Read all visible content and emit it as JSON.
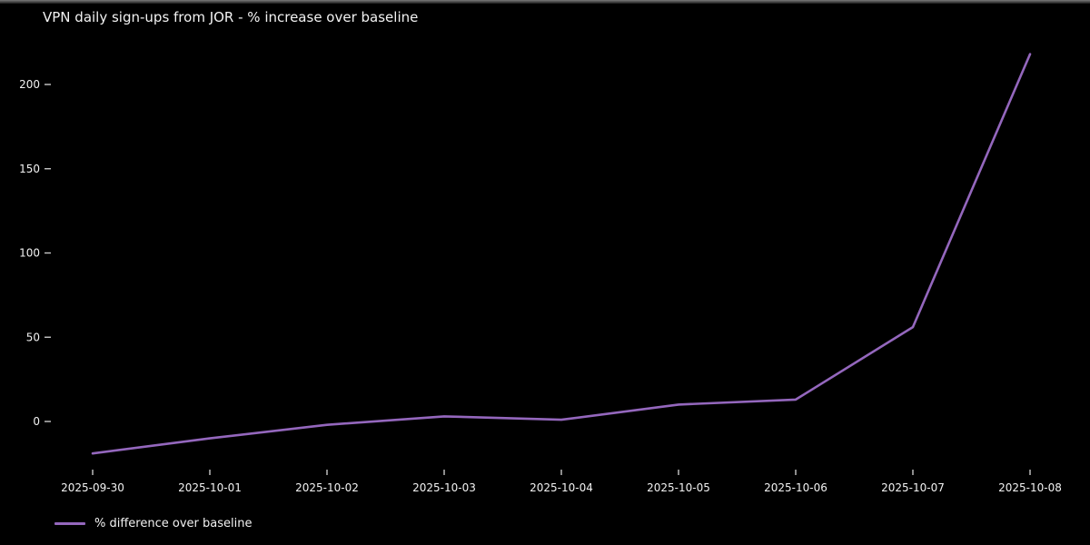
{
  "chart_data": {
    "type": "line",
    "title": "VPN daily sign-ups from JOR - % increase over baseline",
    "x": [
      "2025-09-30",
      "2025-10-01",
      "2025-10-02",
      "2025-10-03",
      "2025-10-04",
      "2025-10-05",
      "2025-10-06",
      "2025-10-07",
      "2025-10-08"
    ],
    "series": [
      {
        "name": "% difference over baseline",
        "values": [
          -19,
          -10,
          -2,
          3,
          1,
          10,
          13,
          56,
          218
        ],
        "color": "#9467bd"
      }
    ],
    "xlabel": "",
    "ylabel": "",
    "yticks": [
      0,
      50,
      100,
      150,
      200
    ],
    "ylim": [
      -30,
      228
    ],
    "grid": false,
    "legend_position": "lower-left",
    "colors": {
      "background": "#000000",
      "text": "#f2f2f2",
      "tick": "#c8c8c8",
      "line": "#9467bd"
    }
  },
  "legend": {
    "label": "% difference over baseline"
  }
}
